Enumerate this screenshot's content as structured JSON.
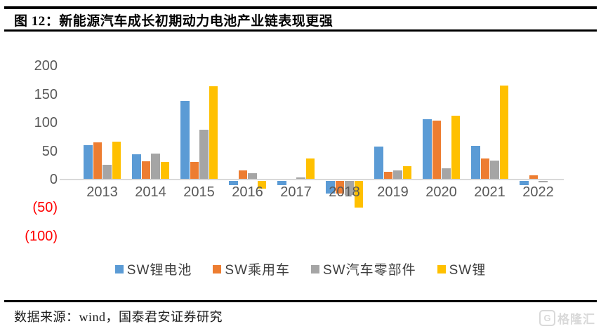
{
  "header": {
    "title": "图 12：新能源汽车成长初期动力电池产业链表现更强"
  },
  "footer": {
    "source": "数据来源：wind，国泰君安证券研究",
    "logo_glyph": "G",
    "logo_text": "格隆汇"
  },
  "colors": {
    "blue": "#5B9BD5",
    "orange": "#ED7D31",
    "gray": "#A5A5A5",
    "yellow": "#FFC000",
    "axis": "#d9d9d9",
    "tick": "#595959",
    "negative_tick": "#ff0000"
  },
  "chart_data": {
    "type": "bar",
    "title": "",
    "xlabel": "",
    "ylabel": "",
    "categories": [
      "2013",
      "2014",
      "2015",
      "2016",
      "2017",
      "2018",
      "2019",
      "2020",
      "2021",
      "2022"
    ],
    "series": [
      {
        "name": "SW锂电池",
        "color": "#5B9BD5",
        "values": [
          60,
          44,
          138,
          -8,
          -8,
          -22,
          58,
          106,
          59,
          -7
        ]
      },
      {
        "name": "SW乘用车",
        "color": "#ED7D31",
        "values": [
          65,
          32,
          31,
          16,
          1,
          -22,
          14,
          104,
          37,
          8
        ]
      },
      {
        "name": "SW汽车零部件",
        "color": "#A5A5A5",
        "values": [
          26,
          46,
          88,
          11,
          4,
          -25,
          16,
          20,
          33,
          -2
        ]
      },
      {
        "name": "SW锂",
        "color": "#FFC000",
        "values": [
          67,
          31,
          165,
          -13,
          37,
          -47,
          24,
          113,
          166,
          0
        ]
      }
    ],
    "ylim": [
      -100,
      200
    ],
    "yticks": [
      200,
      150,
      100,
      50,
      0,
      -50,
      -100
    ],
    "ytick_negative_format": "(n) in red",
    "grid": false,
    "legend_position": "bottom"
  }
}
